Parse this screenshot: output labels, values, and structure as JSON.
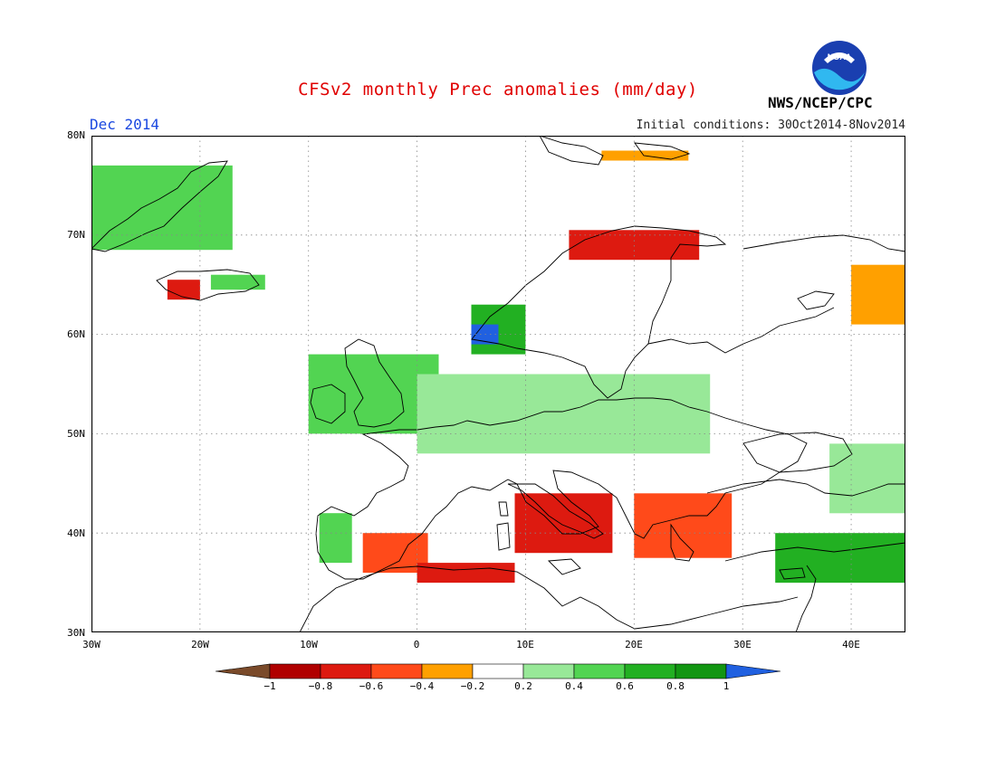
{
  "title": "CFSv2 monthly Prec anomalies (mm/day)",
  "month_label": "Dec 2014",
  "initial_conditions": "Initial conditions: 30Oct2014-8Nov2014",
  "agency": "NWS/NCEP/CPC",
  "logo_text": "NOAA",
  "map": {
    "lon_range": [
      -30,
      45
    ],
    "lat_range": [
      30,
      80
    ],
    "lat_labels": [
      "80N",
      "70N",
      "60N",
      "50N",
      "40N",
      "30N"
    ],
    "lon_labels": [
      "30W",
      "20W",
      "10W",
      "0",
      "10E",
      "20E",
      "30E",
      "40E"
    ],
    "grid": "dotted"
  },
  "colorbar": {
    "labels": [
      "−1",
      "−0.8",
      "−0.6",
      "−0.4",
      "−0.2",
      "0.2",
      "0.4",
      "0.6",
      "0.8",
      "1"
    ],
    "colors": {
      "lt_m1": "#7a4a2a",
      "m1_m08": "#b00000",
      "m08_m06": "#dd1a10",
      "m06_m04": "#ff4a1a",
      "m04_m02": "#ffa000",
      "neutral": "#ffffff",
      "p02_p04": "#98e898",
      "p04_p06": "#52d452",
      "p06_p08": "#22b022",
      "p08_p1": "#129612",
      "gt_p1": "#2060e0"
    }
  },
  "chart_data": {
    "type": "heatmap",
    "title": "CFSv2 monthly Prec anomalies (mm/day)",
    "units": "mm/day",
    "period": "Dec 2014",
    "x_axis": "longitude",
    "y_axis": "latitude",
    "xlim": [
      -30,
      45
    ],
    "ylim": [
      30,
      80
    ],
    "levels": [
      -1,
      -0.8,
      -0.6,
      -0.4,
      -0.2,
      0.2,
      0.4,
      0.6,
      0.8,
      1
    ],
    "regions": [
      {
        "name": "Greenland coast",
        "lon": [
          -30,
          -17
        ],
        "lat": [
          68.5,
          77
        ],
        "anomaly": 0.5
      },
      {
        "name": "Iceland west",
        "lon": [
          -23,
          -20
        ],
        "lat": [
          63.5,
          65.5
        ],
        "anomaly": -0.8
      },
      {
        "name": "Iceland east",
        "lon": [
          -19,
          -14
        ],
        "lat": [
          64.5,
          66
        ],
        "anomaly": 0.5
      },
      {
        "name": "Norway coast south",
        "lon": [
          5,
          10
        ],
        "lat": [
          58,
          63
        ],
        "anomaly": 0.6
      },
      {
        "name": "Norway southwest coast",
        "lon": [
          5,
          7.5
        ],
        "lat": [
          59,
          61
        ],
        "anomaly": 1.1
      },
      {
        "name": "Northern Norway",
        "lon": [
          14,
          26
        ],
        "lat": [
          67.5,
          70.5
        ],
        "anomaly": -0.8
      },
      {
        "name": "Svalbard",
        "lon": [
          17,
          25
        ],
        "lat": [
          77.5,
          78.5
        ],
        "anomaly": -0.4
      },
      {
        "name": "NW Russia",
        "lon": [
          40,
          45
        ],
        "lat": [
          61,
          67
        ],
        "anomaly": -0.4
      },
      {
        "name": "British Isles",
        "lon": [
          -10,
          2
        ],
        "lat": [
          50,
          58
        ],
        "anomaly": 0.5
      },
      {
        "name": "Central Europe",
        "lon": [
          0,
          27
        ],
        "lat": [
          48,
          56
        ],
        "anomaly": 0.3
      },
      {
        "name": "Italy",
        "lon": [
          9,
          18
        ],
        "lat": [
          38,
          44
        ],
        "anomaly": -0.8
      },
      {
        "name": "Balkans Greece",
        "lon": [
          20,
          29
        ],
        "lat": [
          37.5,
          44
        ],
        "anomaly": -0.6
      },
      {
        "name": "Iberia east",
        "lon": [
          -5,
          1
        ],
        "lat": [
          36,
          40
        ],
        "anomaly": -0.5
      },
      {
        "name": "Portugal",
        "lon": [
          -9,
          -6
        ],
        "lat": [
          37,
          42
        ],
        "anomaly": 0.5
      },
      {
        "name": "Algeria coast",
        "lon": [
          0,
          9
        ],
        "lat": [
          35,
          37
        ],
        "anomaly": -0.7
      },
      {
        "name": "Turkey east",
        "lon": [
          33,
          45
        ],
        "lat": [
          35,
          40
        ],
        "anomaly": 0.6
      },
      {
        "name": "Caucasus",
        "lon": [
          38,
          45
        ],
        "lat": [
          42,
          49
        ],
        "anomaly": 0.3
      }
    ]
  }
}
